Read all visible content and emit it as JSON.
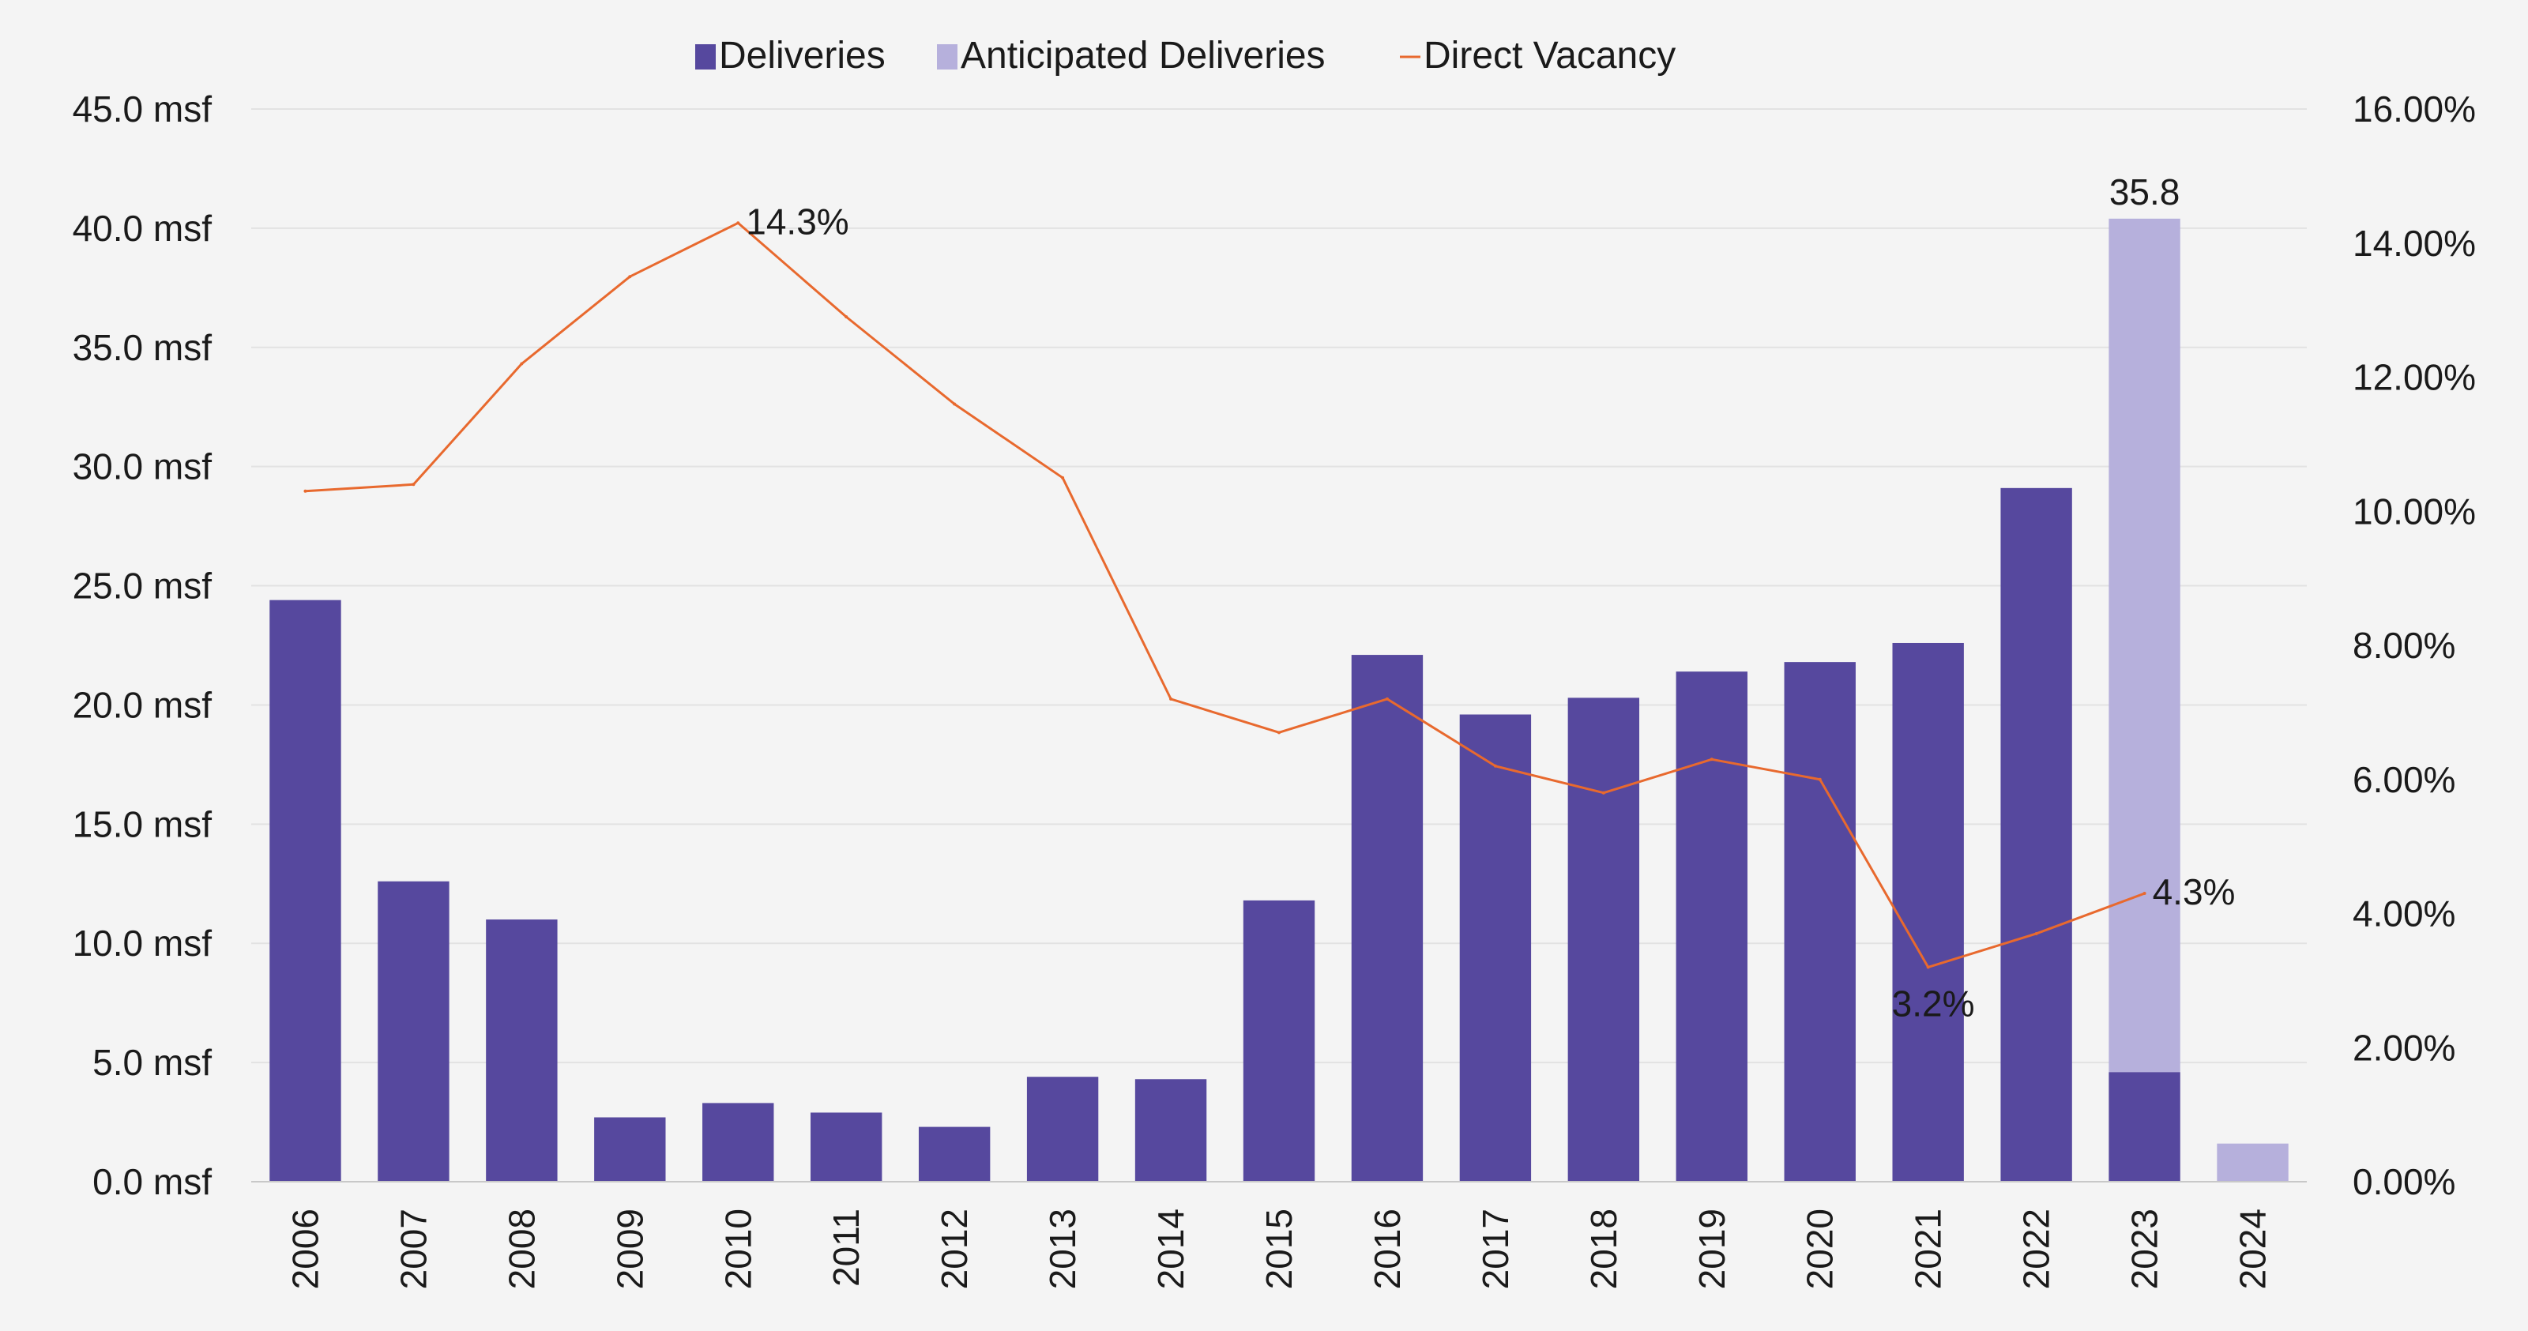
{
  "chart_data": {
    "type": "bar",
    "categories": [
      "2006",
      "2007",
      "2008",
      "2009",
      "2010",
      "2011",
      "2012",
      "2013",
      "2014",
      "2015",
      "2016",
      "2017",
      "2018",
      "2019",
      "2020",
      "2021",
      "2022",
      "2023",
      "2024"
    ],
    "series": [
      {
        "name": "Deliveries",
        "kind": "bar",
        "axis": "left",
        "color": "#56489e",
        "values": [
          24.4,
          12.6,
          11.0,
          2.7,
          3.3,
          2.9,
          2.3,
          4.4,
          4.3,
          11.8,
          22.1,
          19.6,
          20.3,
          21.4,
          21.8,
          22.6,
          29.1,
          4.6,
          0
        ]
      },
      {
        "name": "Anticipated Deliveries",
        "kind": "bar-stacked",
        "axis": "left",
        "color": "#b6b0dc",
        "values": [
          0,
          0,
          0,
          0,
          0,
          0,
          0,
          0,
          0,
          0,
          0,
          0,
          0,
          0,
          0,
          0,
          0,
          35.8,
          1.6
        ]
      },
      {
        "name": "Direct Vacancy",
        "kind": "line",
        "axis": "right",
        "color": "#e8692e",
        "values": [
          10.3,
          10.4,
          12.2,
          13.5,
          14.3,
          12.9,
          11.6,
          10.5,
          7.2,
          6.7,
          7.2,
          6.2,
          5.8,
          6.3,
          6.0,
          3.2,
          3.7,
          4.3,
          null
        ]
      }
    ],
    "y_left": {
      "ylim": [
        0,
        45
      ],
      "ticks": [
        0,
        5,
        10,
        15,
        20,
        25,
        30,
        35,
        40,
        45
      ],
      "tick_labels": [
        "0.0 msf",
        "5.0 msf",
        "10.0 msf",
        "15.0 msf",
        "20.0 msf",
        "25.0 msf",
        "30.0 msf",
        "35.0 msf",
        "40.0 msf",
        "45.0 msf"
      ]
    },
    "y_right": {
      "ylim": [
        0,
        16
      ],
      "ticks": [
        0,
        2,
        4,
        6,
        8,
        10,
        12,
        14,
        16
      ],
      "tick_labels": [
        "0.00%",
        "2.00%",
        "4.00%",
        "6.00%",
        "8.00%",
        "10.00%",
        "12.00%",
        "14.00%",
        "16.00%"
      ]
    },
    "annotations": [
      {
        "series": "Anticipated Deliveries",
        "category": "2023",
        "text": "35.8"
      },
      {
        "series": "Direct Vacancy",
        "category": "2010",
        "text": "14.3%"
      },
      {
        "series": "Direct Vacancy",
        "category": "2021",
        "text": "3.2%"
      },
      {
        "series": "Direct Vacancy",
        "category": "2023",
        "text": "4.3%"
      }
    ],
    "legend": {
      "placement": "top-center",
      "entries": [
        "Deliveries",
        "Anticipated Deliveries",
        "Direct Vacancy"
      ]
    },
    "grid": true,
    "colors": {
      "background": "#f4f4f4",
      "gridline": "#e2e2e2",
      "axis": "#c8c8c8"
    }
  }
}
